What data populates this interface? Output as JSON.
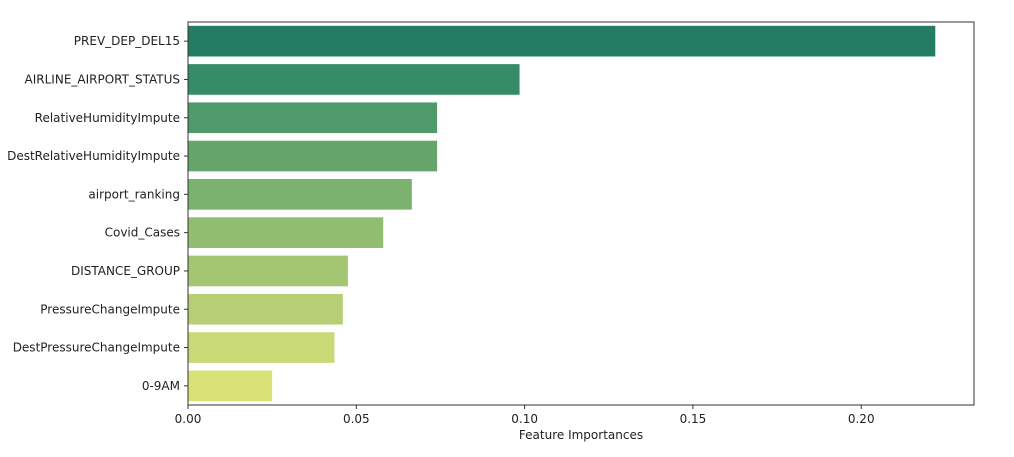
{
  "chart_data": {
    "type": "bar",
    "orientation": "horizontal",
    "title": "",
    "xlabel": "Feature Importances",
    "ylabel": "",
    "categories": [
      "PREV_DEP_DEL15",
      "AIRLINE_AIRPORT_STATUS",
      "RelativeHumidityImpute",
      "DestRelativeHumidityImpute",
      "airport_ranking",
      "Covid_Cases",
      "DISTANCE_GROUP",
      "PressureChangeImpute",
      "DestPressureChangeImpute",
      "0-9AM"
    ],
    "values": [
      0.222,
      0.0985,
      0.074,
      0.074,
      0.0665,
      0.058,
      0.0475,
      0.046,
      0.0435,
      0.025
    ],
    "colors": [
      "#237c63",
      "#378c68",
      "#4f996a",
      "#65a56c",
      "#7bb26f",
      "#91bd71",
      "#a4c672",
      "#b7cf74",
      "#c8d975",
      "#d8e176"
    ],
    "xlim": [
      0,
      0.2335
    ],
    "xticks": [
      0,
      0.05,
      0.1,
      0.15,
      0.2
    ],
    "xtick_labels": [
      "0.00",
      "0.05",
      "0.10",
      "0.15",
      "0.20"
    ],
    "grid": false,
    "legend": "none"
  }
}
